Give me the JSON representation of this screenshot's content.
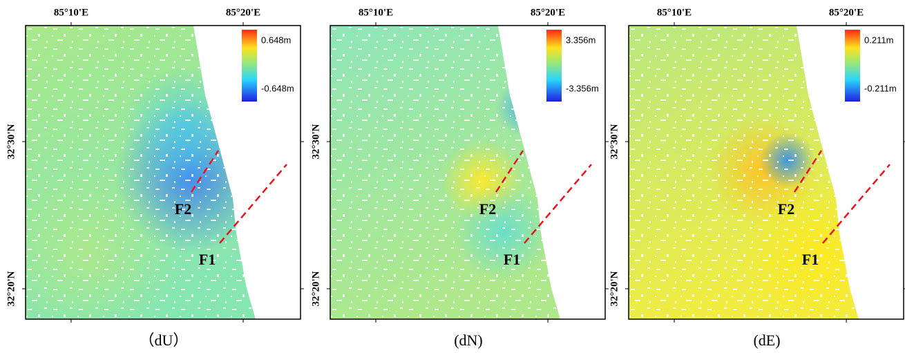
{
  "panels": [
    {
      "caption": "（dU）",
      "lon_labels": [
        "85°10'E",
        "85°20'E"
      ],
      "lat_labels": [
        "32°30'N",
        "32°20'N"
      ],
      "colorbar": {
        "max": "0.648m",
        "min": "-0.648m"
      },
      "faults": [
        "F2",
        "F1"
      ]
    },
    {
      "caption": "(dN)",
      "lon_labels": [
        "85°10'E",
        "85°20'E"
      ],
      "lat_labels": [
        "32°30'N",
        "32°20'N"
      ],
      "colorbar": {
        "max": "3.356m",
        "min": "-3.356m"
      },
      "faults": [
        "F2",
        "F1"
      ]
    },
    {
      "caption": "(dE)",
      "lon_labels": [
        "85°10'E",
        "85°20'E"
      ],
      "lat_labels": [
        "32°30'N",
        "32°20'N"
      ],
      "colorbar": {
        "max": "0.211m",
        "min": "-0.211m"
      },
      "faults": [
        "F2",
        "F1"
      ]
    }
  ]
}
